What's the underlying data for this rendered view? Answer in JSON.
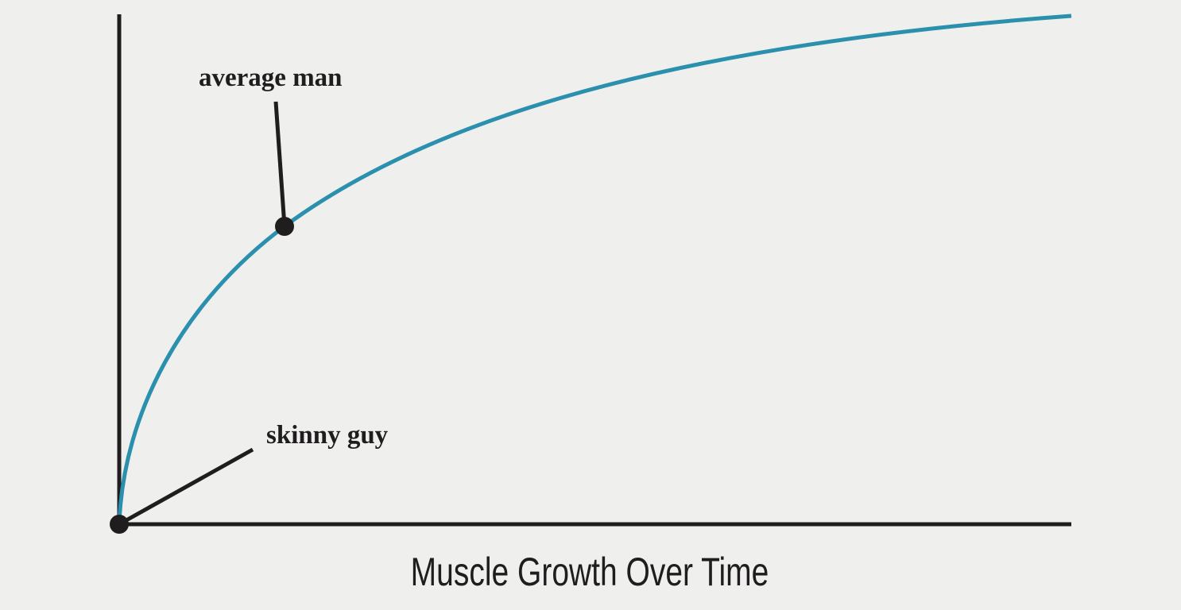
{
  "diagram": {
    "title": "Muscle Growth Over Time",
    "labels": [
      "average man",
      "skinny guy"
    ]
  }
}
